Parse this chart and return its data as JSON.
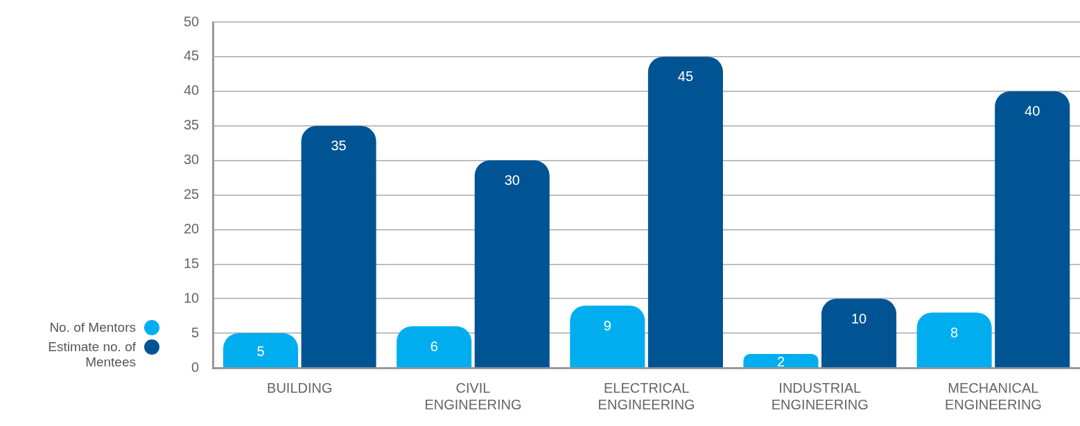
{
  "chart_data": {
    "type": "bar",
    "categories": [
      "BUILDING",
      "CIVIL ENGINEERING",
      "ELECTRICAL ENGINEERING",
      "INDUSTRIAL ENGINEERING",
      "MECHANICAL ENGINEERING"
    ],
    "series": [
      {
        "name": "No. of Mentors",
        "color": "#00aeef",
        "values": [
          5,
          6,
          9,
          2,
          8
        ]
      },
      {
        "name": "Estimate no. of Mentees",
        "color": "#005494",
        "values": [
          35,
          30,
          45,
          10,
          40
        ]
      }
    ],
    "ylim": [
      0,
      50
    ],
    "yticks": [
      0,
      5,
      10,
      15,
      20,
      25,
      30,
      35,
      40,
      45,
      50
    ],
    "grid": "y",
    "legend": "left",
    "data_labels": true
  }
}
